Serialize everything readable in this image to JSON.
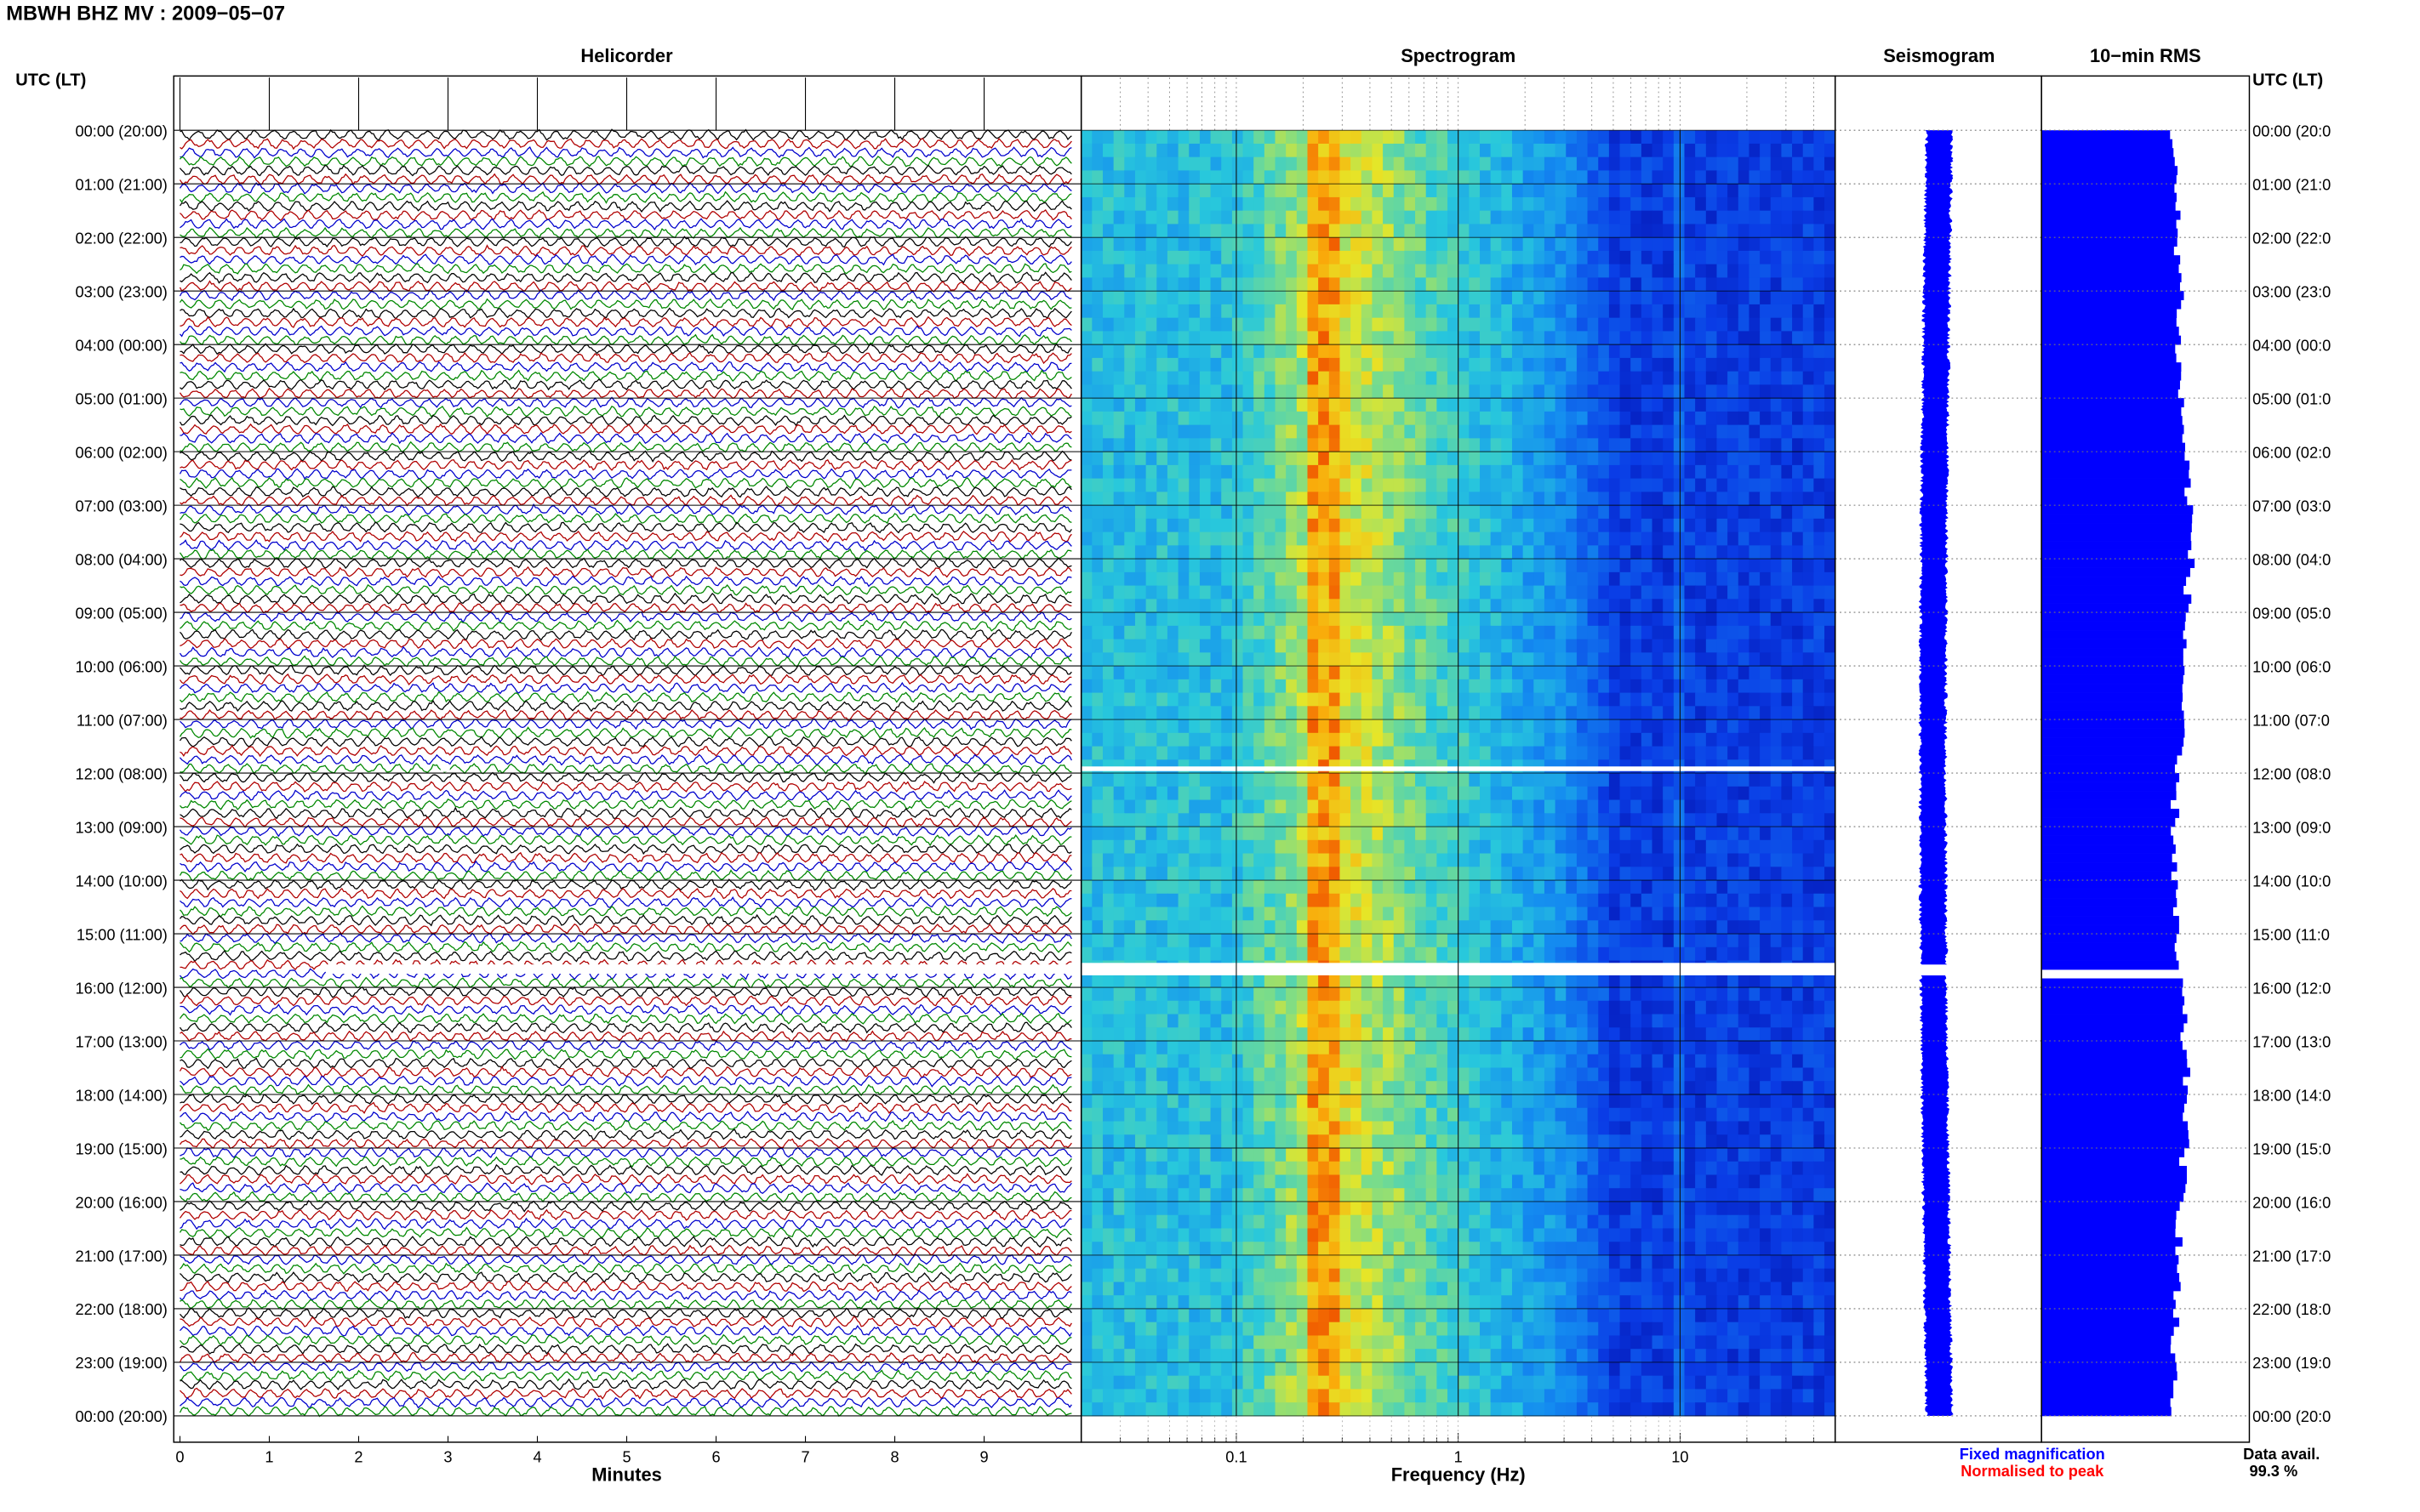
{
  "header": {
    "title": "MBWH BHZ MV : 2009−05−07",
    "utc_label_left": "UTC (LT)",
    "utc_label_right": "UTC (LT)"
  },
  "panels": {
    "helicorder": "Helicorder",
    "spectrogram": "Spectrogram",
    "seismogram": "Seismogram",
    "rms": "10−min RMS"
  },
  "axes": {
    "minutes_label": "Minutes",
    "frequency_label": "Frequency (Hz)",
    "minute_ticks": [
      "0",
      "1",
      "2",
      "3",
      "4",
      "5",
      "6",
      "7",
      "8",
      "9"
    ],
    "freq_ticks": [
      "0.1",
      "1",
      "10"
    ]
  },
  "time_labels_left": [
    "00:00 (20:00)",
    "01:00 (21:00)",
    "02:00 (22:00)",
    "03:00 (23:00)",
    "04:00 (00:00)",
    "05:00 (01:00)",
    "06:00 (02:00)",
    "07:00 (03:00)",
    "08:00 (04:00)",
    "09:00 (05:00)",
    "10:00 (06:00)",
    "11:00 (07:00)",
    "12:00 (08:00)",
    "13:00 (09:00)",
    "14:00 (10:00)",
    "15:00 (11:00)",
    "16:00 (12:00)",
    "17:00 (13:00)",
    "18:00 (14:00)",
    "19:00 (15:00)",
    "20:00 (16:00)",
    "21:00 (17:00)",
    "22:00 (18:00)",
    "23:00 (19:00)",
    "00:00 (20:00)"
  ],
  "time_labels_right": [
    "00:00 (20:0",
    "01:00 (21:0",
    "02:00 (22:0",
    "03:00 (23:0",
    "04:00 (00:0",
    "05:00 (01:0",
    "06:00 (02:0",
    "07:00 (03:0",
    "08:00 (04:0",
    "09:00 (05:0",
    "10:00 (06:0",
    "11:00 (07:0",
    "12:00 (08:0",
    "13:00 (09:0",
    "14:00 (10:0",
    "15:00 (11:0",
    "16:00 (12:0",
    "17:00 (13:0",
    "18:00 (14:0",
    "19:00 (15:0",
    "20:00 (16:0",
    "21:00 (17:0",
    "22:00 (18:0",
    "23:00 (19:0",
    "00:00 (20:0"
  ],
  "legend": {
    "fixed": "Fixed magnification",
    "normalised": "Normalised to peak",
    "fixed_color": "#0000ff",
    "normalised_color": "#ff0000"
  },
  "data_avail": {
    "label": "Data avail.",
    "value": "99.3 %"
  },
  "colors": {
    "trace_cycle": [
      "#000000",
      "#b00000",
      "#0000cc",
      "#008800"
    ],
    "rms_bar": "#0000ff",
    "seismo": "#0000ff"
  },
  "chart_data": {
    "type": "heatmap",
    "station": "MBWH BHZ MV",
    "date": "2009-05-07",
    "hours_utc": 24,
    "helicorder_minutes_per_line": 10,
    "spectrogram_freq_range_hz": [
      0.02,
      50
    ],
    "spectrogram_log_x": true,
    "spectrogram_peak_freq_hz": 0.22,
    "gaps_utc": [
      "11:55",
      "15:40-15:50"
    ],
    "rms_10min_relative_envelope": [
      0.84,
      0.86,
      0.88,
      0.9,
      0.88,
      0.9,
      0.93,
      0.96,
      0.96,
      0.93,
      0.92,
      0.9,
      0.86,
      0.86,
      0.86,
      0.86,
      0.9,
      0.92,
      0.94,
      0.92,
      0.9,
      0.88,
      0.86,
      0.85,
      0.84
    ],
    "data_availability_percent": 99.3
  }
}
